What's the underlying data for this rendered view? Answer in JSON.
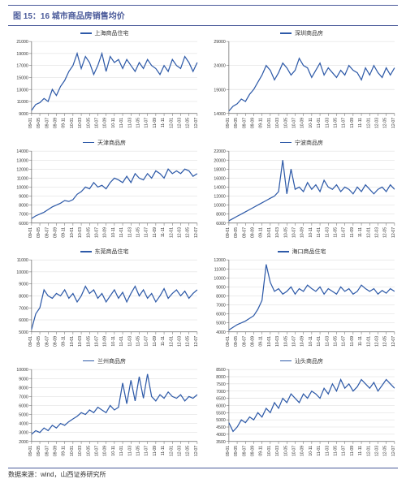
{
  "figure_title": "图 15：16 城市商品房销售均价",
  "source_text": "数据来源：wind，山西证券研究所",
  "line_color": "#2e5aa8",
  "axis_color": "#666666",
  "grid_color": "#d9d9d9",
  "tick_font_size": 5,
  "title_color": "#4a5a9a",
  "background_color": "#ffffff",
  "x_labels": [
    "09-01",
    "09-05",
    "09-07",
    "09-09",
    "09-11",
    "10-01",
    "10-03",
    "10-05",
    "10-07",
    "10-09",
    "10-11",
    "11-01",
    "11-03",
    "11-05",
    "11-07",
    "11-09",
    "11-11",
    "12-01",
    "12-03",
    "12-05",
    "12-07"
  ],
  "charts": [
    {
      "name": "上海商品住宅",
      "ymin": 9000,
      "ymax": 21000,
      "ystep": 2000,
      "values": [
        9500,
        10500,
        10800,
        11500,
        11000,
        13000,
        12000,
        13500,
        14500,
        16000,
        17000,
        19000,
        16500,
        18500,
        17500,
        15500,
        17000,
        19000,
        16000,
        18500,
        17500,
        18000,
        16500,
        18000,
        17000,
        16000,
        17500,
        16500,
        18000,
        17000,
        16500,
        15500,
        17000,
        16000,
        18000,
        17000,
        16500,
        18500,
        17500,
        16000,
        17500
      ]
    },
    {
      "name": "深圳商品房",
      "ymin": 14000,
      "ymax": 29000,
      "ystep": 5000,
      "values": [
        14500,
        15500,
        16000,
        17000,
        16500,
        18000,
        19000,
        20500,
        22000,
        24000,
        23000,
        21000,
        22500,
        24500,
        23500,
        22000,
        23000,
        25500,
        24000,
        23500,
        21500,
        23000,
        24500,
        22000,
        23500,
        22500,
        21500,
        23000,
        22000,
        24000,
        23000,
        22500,
        21000,
        23500,
        22000,
        24000,
        22500,
        21500,
        23500,
        22000,
        23500
      ]
    },
    {
      "name": "天津商品房",
      "ymin": 6000,
      "ymax": 14000,
      "ystep": 1000,
      "values": [
        6500,
        6800,
        7000,
        7200,
        7500,
        7800,
        8000,
        8200,
        8500,
        8400,
        8600,
        9200,
        9500,
        10000,
        9800,
        10500,
        10000,
        10200,
        9800,
        10500,
        11000,
        10800,
        10500,
        11200,
        10500,
        11500,
        11000,
        10800,
        11500,
        11000,
        11800,
        11500,
        11000,
        12000,
        11500,
        11800,
        11500,
        12000,
        11800,
        11200,
        11500
      ]
    },
    {
      "name": "宁波商品房",
      "ymin": 6000,
      "ymax": 22000,
      "ystep": 2000,
      "values": [
        6500,
        7000,
        7500,
        8000,
        8500,
        9000,
        9500,
        10000,
        10500,
        11000,
        11500,
        12000,
        13000,
        20000,
        12500,
        18000,
        13500,
        14000,
        13000,
        15000,
        13500,
        14500,
        13000,
        15500,
        14000,
        13500,
        14500,
        13000,
        14000,
        13500,
        12500,
        14000,
        13000,
        14500,
        13500,
        12500,
        13500,
        14000,
        13000,
        14500,
        13500
      ]
    },
    {
      "name": "东莞商品住宅",
      "ymin": 5000,
      "ymax": 11000,
      "ystep": 1000,
      "values": [
        5200,
        6500,
        7000,
        8500,
        8000,
        7800,
        8200,
        8000,
        8500,
        7800,
        8200,
        7500,
        8000,
        8800,
        8200,
        8500,
        7800,
        8200,
        7500,
        8000,
        8500,
        7800,
        8300,
        7500,
        8200,
        8800,
        8000,
        8500,
        7800,
        8200,
        7500,
        8000,
        8600,
        7800,
        8200,
        8500,
        8000,
        8400,
        7800,
        8200,
        8500
      ]
    },
    {
      "name": "海口商品住宅",
      "ymin": 4000,
      "ymax": 12000,
      "ystep": 1000,
      "values": [
        4200,
        4500,
        4800,
        5000,
        5200,
        5500,
        5800,
        6500,
        7500,
        11500,
        9500,
        8500,
        8800,
        8200,
        8500,
        9000,
        8200,
        8800,
        8500,
        9200,
        8800,
        8500,
        9000,
        8200,
        8800,
        8500,
        8200,
        9000,
        8500,
        8800,
        8200,
        8500,
        9200,
        8800,
        8500,
        8800,
        8200,
        8600,
        8300,
        8800,
        8500
      ]
    },
    {
      "name": "兰州商品房",
      "ymin": 2000,
      "ymax": 10000,
      "ystep": 1000,
      "values": [
        2800,
        3200,
        3000,
        3500,
        3200,
        3800,
        3500,
        4000,
        3800,
        4200,
        4500,
        4800,
        5200,
        5000,
        5500,
        5200,
        5800,
        5500,
        5200,
        6000,
        5500,
        5800,
        8500,
        6200,
        8800,
        6500,
        9200,
        6800,
        9500,
        7000,
        6500,
        7200,
        6800,
        7500,
        7000,
        6800,
        7200,
        6500,
        7000,
        6800,
        7200
      ]
    },
    {
      "name": "汕头商品房",
      "ymin": 3500,
      "ymax": 8500,
      "ystep": 500,
      "values": [
        4800,
        4200,
        4500,
        5000,
        4800,
        5200,
        5000,
        5500,
        5200,
        5800,
        5500,
        6200,
        5800,
        6500,
        6200,
        6800,
        6500,
        6200,
        6800,
        6500,
        7000,
        6800,
        6500,
        7200,
        6800,
        7500,
        7000,
        7800,
        7200,
        7500,
        7000,
        7300,
        7800,
        7500,
        7200,
        7600,
        7000,
        7400,
        7800,
        7500,
        7200
      ]
    }
  ]
}
